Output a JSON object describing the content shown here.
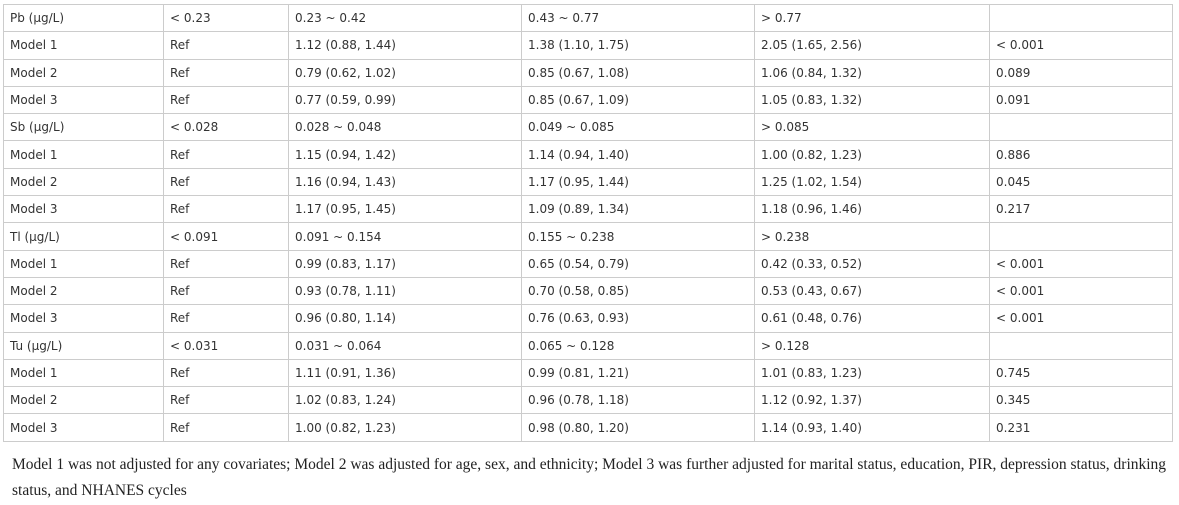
{
  "table": {
    "rows": [
      [
        "Pb (μg/L)",
        "< 0.23",
        "0.23 ~ 0.42",
        "0.43 ~ 0.77",
        "> 0.77",
        ""
      ],
      [
        "Model 1",
        "Ref",
        "1.12 (0.88, 1.44)",
        "1.38 (1.10, 1.75)",
        "2.05 (1.65, 2.56)",
        "< 0.001"
      ],
      [
        "Model 2",
        "Ref",
        "0.79 (0.62, 1.02)",
        "0.85 (0.67, 1.08)",
        "1.06 (0.84, 1.32)",
        "0.089"
      ],
      [
        "Model 3",
        "Ref",
        "0.77 (0.59, 0.99)",
        "0.85 (0.67, 1.09)",
        "1.05 (0.83, 1.32)",
        "0.091"
      ],
      [
        "Sb (μg/L)",
        "< 0.028",
        "0.028 ~ 0.048",
        "0.049 ~ 0.085",
        "> 0.085",
        ""
      ],
      [
        "Model 1",
        "Ref",
        "1.15 (0.94, 1.42)",
        "1.14 (0.94, 1.40)",
        "1.00 (0.82, 1.23)",
        "0.886"
      ],
      [
        "Model 2",
        "Ref",
        "1.16 (0.94, 1.43)",
        "1.17 (0.95, 1.44)",
        "1.25 (1.02, 1.54)",
        "0.045"
      ],
      [
        "Model 3",
        "Ref",
        "1.17 (0.95, 1.45)",
        "1.09 (0.89, 1.34)",
        "1.18 (0.96, 1.46)",
        "0.217"
      ],
      [
        "Tl (μg/L)",
        "< 0.091",
        "0.091 ~ 0.154",
        "0.155 ~ 0.238",
        "> 0.238",
        ""
      ],
      [
        "Model 1",
        "Ref",
        "0.99 (0.83, 1.17)",
        "0.65 (0.54, 0.79)",
        "0.42 (0.33, 0.52)",
        "< 0.001"
      ],
      [
        "Model 2",
        "Ref",
        "0.93 (0.78, 1.11)",
        "0.70 (0.58, 0.85)",
        "0.53 (0.43, 0.67)",
        "< 0.001"
      ],
      [
        "Model 3",
        "Ref",
        "0.96 (0.80, 1.14)",
        "0.76 (0.63, 0.93)",
        "0.61 (0.48, 0.76)",
        "< 0.001"
      ],
      [
        "Tu (μg/L)",
        "< 0.031",
        "0.031 ~ 0.064",
        "0.065 ~ 0.128",
        "> 0.128",
        ""
      ],
      [
        "Model 1",
        "Ref",
        "1.11 (0.91, 1.36)",
        "0.99 (0.81, 1.21)",
        "1.01 (0.83, 1.23)",
        "0.745"
      ],
      [
        "Model 2",
        "Ref",
        "1.02 (0.83, 1.24)",
        "0.96 (0.78, 1.18)",
        "1.12 (0.92, 1.37)",
        "0.345"
      ],
      [
        "Model 3",
        "Ref",
        "1.00 (0.82, 1.23)",
        "0.98 (0.80, 1.20)",
        "1.14 (0.93, 1.40)",
        "0.231"
      ]
    ]
  },
  "footnote": "Model 1 was not adjusted for any covariates; Model 2 was adjusted for age, sex, and ethnicity; Model 3 was further adjusted for marital status, education, PIR, depression status, drinking status, and NHANES cycles"
}
